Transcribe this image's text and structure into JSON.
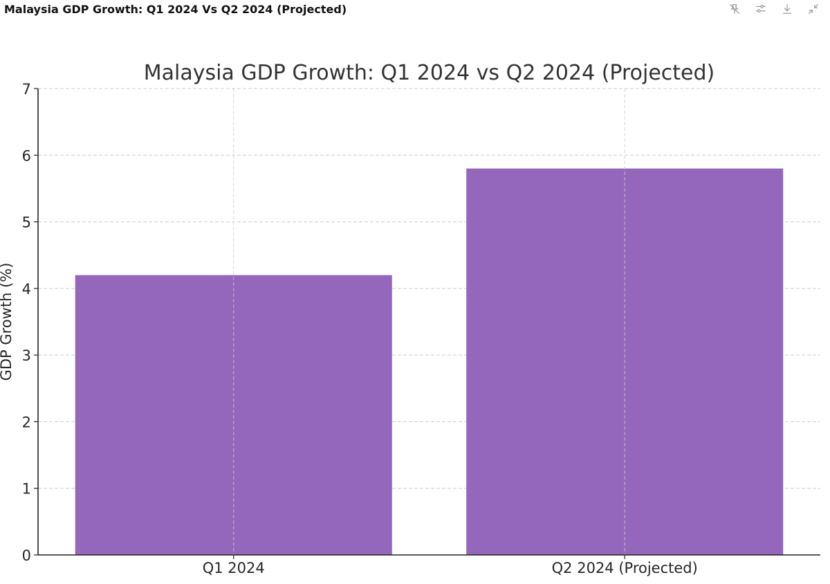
{
  "window": {
    "title": "Malaysia GDP Growth: Q1 2024 Vs Q2 2024 (Projected)"
  },
  "toolbar": {
    "icons": [
      "pin-off-icon",
      "sliders-icon",
      "download-icon",
      "collapse-icon"
    ]
  },
  "colors": {
    "bar": "#9467bd",
    "grid": "#cccccc",
    "axis": "#222222"
  },
  "chart_data": {
    "type": "bar",
    "title": "Malaysia GDP Growth: Q1 2024 vs Q2 2024 (Projected)",
    "xlabel": "",
    "ylabel": "GDP Growth (%)",
    "categories": [
      "Q1 2024",
      "Q2 2024 (Projected)"
    ],
    "values": [
      4.2,
      5.8
    ],
    "ylim": [
      0,
      7
    ],
    "yticks": [
      0,
      1,
      2,
      3,
      4,
      5,
      6,
      7
    ],
    "grid": true,
    "grid_style": "dashed"
  }
}
